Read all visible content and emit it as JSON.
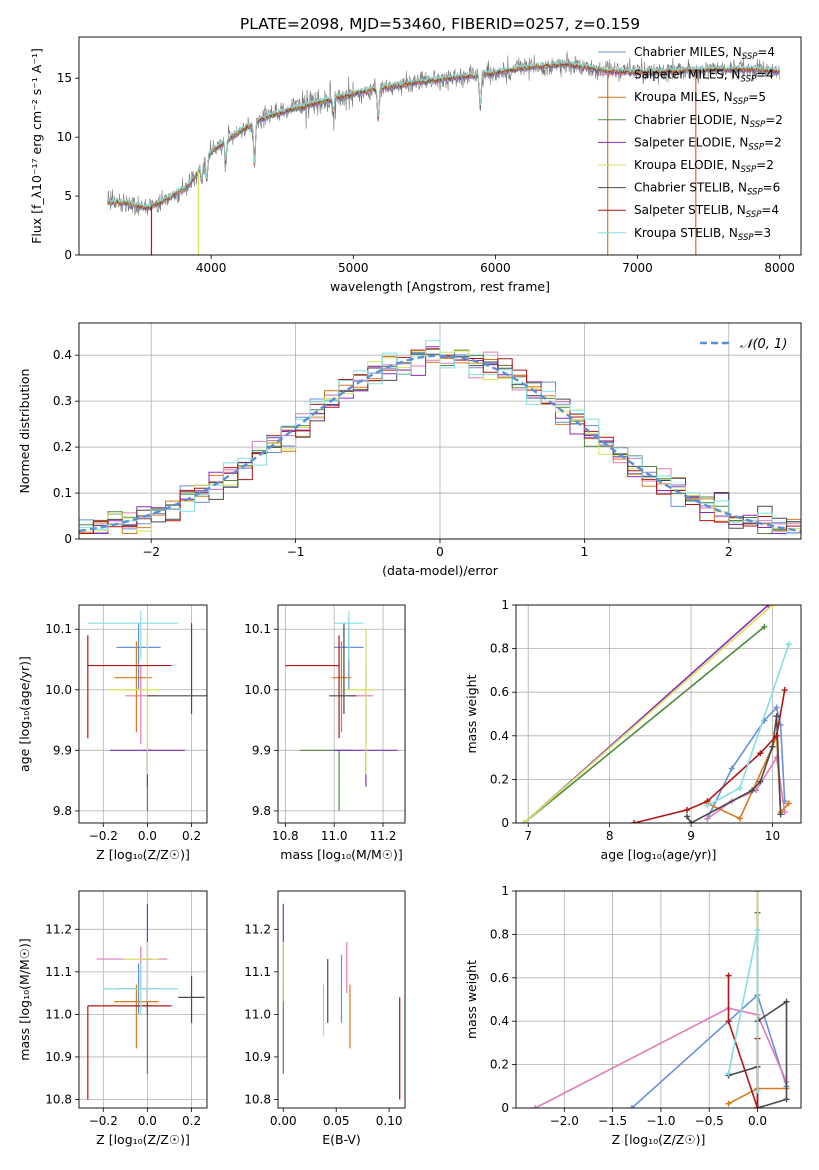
{
  "figure_title": "PLATE=2098, MJD=53460, FIBERID=0257, z=0.159",
  "colors": {
    "Chabrier MILES": "#6a8fd8",
    "Salpeter MILES": "#e07aba",
    "Kroupa MILES": "#d97a1f",
    "Chabrier ELODIE": "#4f8a3f",
    "Salpeter ELODIE": "#8e2ab8",
    "Kroupa ELODIE": "#d4e35a",
    "Chabrier STELIB": "#4a4a4a",
    "Salpeter STELIB": "#b01515",
    "Kroupa STELIB": "#84dfe2",
    "normal": "#5b8fd6"
  },
  "chart_data": [
    {
      "id": "spectrum",
      "type": "line",
      "xlabel": "wavelength [Angstrom, rest frame]",
      "ylabel": "Flux [f_λ10⁻¹⁷ erg cm⁻² s⁻¹ A⁻¹]",
      "xlim": [
        3070,
        8150
      ],
      "ylim": [
        0,
        18.5
      ],
      "xticks": [
        4000,
        5000,
        6000,
        7000,
        8000
      ],
      "yticks": [
        0,
        5,
        10,
        15
      ],
      "grid": false,
      "legend_position": "right",
      "legend": [
        {
          "model": "Chabrier MILES",
          "nssp": "4"
        },
        {
          "model": "Salpeter MILES",
          "nssp": "4"
        },
        {
          "model": "Kroupa MILES",
          "nssp": "5"
        },
        {
          "model": "Chabrier ELODIE",
          "nssp": "2"
        },
        {
          "model": "Salpeter ELODIE",
          "nssp": "2"
        },
        {
          "model": "Kroupa ELODIE",
          "nssp": "2"
        },
        {
          "model": "Chabrier STELIB",
          "nssp": "6"
        },
        {
          "model": "Salpeter STELIB",
          "nssp": "4"
        },
        {
          "model": "Kroupa STELIB",
          "nssp": "3"
        }
      ],
      "continuum": {
        "x": [
          3270,
          3400,
          3550,
          3700,
          3850,
          4000,
          4200,
          4400,
          4700,
          5000,
          5300,
          5600,
          5900,
          6200,
          6500,
          6800,
          7100,
          7400,
          7700,
          8000
        ],
        "y": [
          4.5,
          4.4,
          4.0,
          4.8,
          6.0,
          8.8,
          10.5,
          11.8,
          12.8,
          13.7,
          14.4,
          14.9,
          15.3,
          15.9,
          16.2,
          15.6,
          15.5,
          15.7,
          15.8,
          15.6
        ]
      },
      "absorption_lines": [
        {
          "x": 3934,
          "y": 6.2
        },
        {
          "x": 3969,
          "y": 6.4
        },
        {
          "x": 4102,
          "y": 7.8
        },
        {
          "x": 4305,
          "y": 7.6
        },
        {
          "x": 4861,
          "y": 12.0
        },
        {
          "x": 5175,
          "y": 11.5
        },
        {
          "x": 5893,
          "y": 12.5
        }
      ],
      "spikes": [
        {
          "x": 3580,
          "y": 0
        },
        {
          "x": 3910,
          "y": 0
        },
        {
          "x": 6790,
          "y": 0
        },
        {
          "x": 7410,
          "y": 0
        }
      ]
    },
    {
      "id": "residuals",
      "type": "histogram",
      "xlabel": "(data-model)/error",
      "ylabel": "Normed distribution",
      "xlim": [
        -2.5,
        2.5
      ],
      "ylim": [
        0,
        0.47
      ],
      "xticks": [
        -2,
        -1,
        0,
        1,
        2
      ],
      "yticks": [
        0.0,
        0.1,
        0.2,
        0.3,
        0.4
      ],
      "grid": true,
      "legend": "𝒩(0, 1)",
      "legend_position": "top-right",
      "bin_width": 0.1,
      "bin_range": [
        -2.5,
        2.5
      ]
    },
    {
      "id": "age_vs_z",
      "type": "errorbar",
      "xlabel": "Z [log₁₀(Z/Z☉)]",
      "ylabel": "age  [log₁₀(age/yr)]",
      "xlim": [
        -0.31,
        0.27
      ],
      "ylim": [
        9.78,
        10.14
      ],
      "xticks": [
        -0.2,
        0.0,
        0.2
      ],
      "xticklabels": [
        "−0.2",
        "0.0",
        "0.2"
      ],
      "yticks": [
        9.8,
        9.9,
        10.0,
        10.1
      ],
      "yticklabels": [
        "9.8",
        "9.9",
        "10.0",
        "10.1"
      ],
      "grid": true,
      "points": [
        {
          "model": "Chabrier MILES",
          "x": -0.04,
          "xerr": [
            0.1,
            0.1
          ],
          "y": 10.07,
          "yerr": [
            0.07,
            0.04
          ]
        },
        {
          "model": "Salpeter MILES",
          "x": -0.03,
          "xerr": [
            0.07,
            0.07
          ],
          "y": 9.99,
          "yerr": [
            0.08,
            0.05
          ]
        },
        {
          "model": "Kroupa MILES",
          "x": -0.05,
          "xerr": [
            0.1,
            0.07
          ],
          "y": 10.02,
          "yerr": [
            0.09,
            0.06
          ]
        },
        {
          "model": "Chabrier ELODIE",
          "x": 0.0,
          "xerr": [
            0.02,
            0.02
          ],
          "y": 9.9,
          "yerr": [
            0.1,
            0.0
          ]
        },
        {
          "model": "Salpeter ELODIE",
          "x": 0.0,
          "xerr": [
            0.17,
            0.17
          ],
          "y": 9.9,
          "yerr": [
            0.06,
            0.0
          ]
        },
        {
          "model": "Kroupa ELODIE",
          "x": 0.0,
          "xerr": [
            0.18,
            0.06
          ],
          "y": 10.0,
          "yerr": [
            0.14,
            0.1
          ]
        },
        {
          "model": "Chabrier STELIB",
          "x": 0.2,
          "xerr": [
            0.2,
            0.2
          ],
          "y": 9.99,
          "yerr": [
            0.03,
            0.12
          ]
        },
        {
          "model": "Salpeter STELIB",
          "x": -0.27,
          "xerr": [
            0.0,
            0.38
          ],
          "y": 10.04,
          "yerr": [
            0.12,
            0.05
          ]
        },
        {
          "model": "Kroupa STELIB",
          "x": -0.03,
          "xerr": [
            0.24,
            0.17
          ],
          "y": 10.11,
          "yerr": [
            0.06,
            0.02
          ]
        }
      ]
    },
    {
      "id": "age_vs_mass",
      "type": "errorbar",
      "xlabel": "mass [log₁₀(M/M☉)]",
      "ylabel": "",
      "xlim": [
        10.77,
        11.29
      ],
      "ylim": [
        9.78,
        10.14
      ],
      "xticks": [
        10.8,
        11.0,
        11.2
      ],
      "xticklabels": [
        "10.8",
        "11.0",
        "11.2"
      ],
      "yticks": [
        9.8,
        9.9,
        10.0,
        10.1
      ],
      "yticklabels": [
        "9.8",
        "9.9",
        "10.0",
        "10.1"
      ],
      "grid": true,
      "points": [
        {
          "model": "Chabrier MILES",
          "x": 11.06,
          "xerr": [
            0.06,
            0.06
          ],
          "y": 10.07,
          "yerr": [
            0.07,
            0.04
          ]
        },
        {
          "model": "Salpeter MILES",
          "x": 11.13,
          "xerr": [
            0.07,
            0.03
          ],
          "y": 9.99,
          "yerr": [
            0.08,
            0.05
          ]
        },
        {
          "model": "Kroupa MILES",
          "x": 11.03,
          "xerr": [
            0.04,
            0.04
          ],
          "y": 10.02,
          "yerr": [
            0.09,
            0.06
          ]
        },
        {
          "model": "Chabrier ELODIE",
          "x": 11.02,
          "xerr": [
            0.16,
            0.05
          ],
          "y": 9.9,
          "yerr": [
            0.1,
            0.0
          ]
        },
        {
          "model": "Salpeter ELODIE",
          "x": 11.13,
          "xerr": [
            0.13,
            0.13
          ],
          "y": 9.9,
          "yerr": [
            0.06,
            0.0
          ]
        },
        {
          "model": "Kroupa ELODIE",
          "x": 11.13,
          "xerr": [
            0.1,
            0.04
          ],
          "y": 10.0,
          "yerr": [
            0.14,
            0.1
          ]
        },
        {
          "model": "Chabrier STELIB",
          "x": 11.04,
          "xerr": [
            0.06,
            0.05
          ],
          "y": 9.99,
          "yerr": [
            0.03,
            0.12
          ]
        },
        {
          "model": "Salpeter STELIB",
          "x": 11.02,
          "xerr": [
            0.22,
            0.0
          ],
          "y": 10.04,
          "yerr": [
            0.12,
            0.05
          ]
        },
        {
          "model": "Kroupa STELIB",
          "x": 11.06,
          "xerr": [
            0.06,
            0.06
          ],
          "y": 10.11,
          "yerr": [
            0.06,
            0.02
          ]
        }
      ]
    },
    {
      "id": "weight_vs_age",
      "type": "line",
      "xlabel": "age  [log₁₀(age/yr)]",
      "ylabel": "mass weight",
      "xlim": [
        6.85,
        10.35
      ],
      "ylim": [
        0,
        1
      ],
      "xticks": [
        7,
        8,
        9,
        10
      ],
      "yticks": [
        0.0,
        0.2,
        0.4,
        0.6,
        0.8,
        1.0
      ],
      "grid": true,
      "series": [
        {
          "model": "Chabrier MILES",
          "x": [
            9.2,
            9.5,
            9.9,
            10.05,
            10.1,
            10.15
          ],
          "y": [
            0.02,
            0.25,
            0.47,
            0.53,
            0.45,
            0.1
          ]
        },
        {
          "model": "Salpeter MILES",
          "x": [
            9.2,
            9.5,
            9.8,
            10.05,
            10.15
          ],
          "y": [
            0.02,
            0.1,
            0.15,
            0.3,
            0.05
          ]
        },
        {
          "model": "Kroupa MILES",
          "x": [
            9.2,
            9.6,
            10.0,
            10.05,
            10.1,
            10.2
          ],
          "y": [
            0.09,
            0.02,
            0.35,
            0.4,
            0.05,
            0.09
          ]
        },
        {
          "model": "Chabrier ELODIE",
          "x": [
            6.95,
            9.9
          ],
          "y": [
            0.0,
            0.9
          ]
        },
        {
          "model": "Salpeter ELODIE",
          "x": [
            6.95,
            9.95
          ],
          "y": [
            0.0,
            1.0
          ]
        },
        {
          "model": "Kroupa ELODIE",
          "x": [
            6.95,
            10.0
          ],
          "y": [
            0.0,
            1.0
          ]
        },
        {
          "model": "Chabrier STELIB",
          "x": [
            8.95,
            9.0,
            9.75,
            9.85,
            10.0,
            10.05,
            10.1
          ],
          "y": [
            0.03,
            0.0,
            0.15,
            0.19,
            0.35,
            0.49,
            0.04
          ]
        },
        {
          "model": "Salpeter STELIB",
          "x": [
            8.3,
            8.95,
            9.2,
            9.85,
            10.05,
            10.15
          ],
          "y": [
            0.0,
            0.06,
            0.1,
            0.32,
            0.4,
            0.61
          ]
        },
        {
          "model": "Kroupa STELIB",
          "x": [
            9.2,
            9.6,
            10.2
          ],
          "y": [
            0.08,
            0.16,
            0.82
          ]
        }
      ]
    },
    {
      "id": "mass_vs_z",
      "type": "errorbar",
      "xlabel": "Z [log₁₀(Z/Z☉)]",
      "ylabel": "mass [log₁₀(M/M☉)]",
      "xlim": [
        -0.31,
        0.27
      ],
      "ylim": [
        10.78,
        11.29
      ],
      "xticks": [
        -0.2,
        0.0,
        0.2
      ],
      "xticklabels": [
        "−0.2",
        "0.0",
        "0.2"
      ],
      "yticks": [
        10.8,
        10.9,
        11.0,
        11.1,
        11.2
      ],
      "yticklabels": [
        "10.8",
        "10.9",
        "11.0",
        "11.1",
        "11.2"
      ],
      "grid": true,
      "points": [
        {
          "model": "Chabrier MILES",
          "x": -0.04,
          "xerr": [
            0.1,
            0.1
          ],
          "y": 11.06,
          "yerr": [
            0.06,
            0.06
          ]
        },
        {
          "model": "Salpeter MILES",
          "x": -0.03,
          "xerr": [
            0.2,
            0.12
          ],
          "y": 11.13,
          "yerr": [
            0.07,
            0.03
          ]
        },
        {
          "model": "Kroupa MILES",
          "x": -0.05,
          "xerr": [
            0.1,
            0.1
          ],
          "y": 11.03,
          "yerr": [
            0.11,
            0.04
          ]
        },
        {
          "model": "Chabrier ELODIE",
          "x": 0.0,
          "xerr": [
            0.02,
            0.02
          ],
          "y": 11.02,
          "yerr": [
            0.16,
            0.05
          ]
        },
        {
          "model": "Salpeter ELODIE",
          "x": 0.0,
          "xerr": [
            0.02,
            0.02
          ],
          "y": 11.13,
          "yerr": [
            0.13,
            0.13
          ]
        },
        {
          "model": "Kroupa ELODIE",
          "x": 0.0,
          "xerr": [
            0.11,
            0.05
          ],
          "y": 11.13,
          "yerr": [
            0.1,
            0.04
          ]
        },
        {
          "model": "Chabrier STELIB",
          "x": 0.2,
          "xerr": [
            0.06,
            0.06
          ],
          "y": 11.04,
          "yerr": [
            0.06,
            0.05
          ]
        },
        {
          "model": "Salpeter STELIB",
          "x": -0.27,
          "xerr": [
            0.0,
            0.38
          ],
          "y": 11.02,
          "yerr": [
            0.22,
            0.0
          ]
        },
        {
          "model": "Kroupa STELIB",
          "x": -0.03,
          "xerr": [
            0.17,
            0.17
          ],
          "y": 11.06,
          "yerr": [
            0.06,
            0.06
          ]
        }
      ]
    },
    {
      "id": "mass_vs_ebv",
      "type": "errorbar",
      "xlabel": "E(B-V)",
      "ylabel": "",
      "xlim": [
        -0.005,
        0.115
      ],
      "ylim": [
        10.78,
        11.29
      ],
      "xticks": [
        0.0,
        0.05,
        0.1
      ],
      "xticklabels": [
        "0.00",
        "0.05",
        "0.10"
      ],
      "yticks": [
        10.8,
        10.9,
        11.0,
        11.1,
        11.2
      ],
      "yticklabels": [
        "10.8",
        "10.9",
        "11.0",
        "11.1",
        "11.2"
      ],
      "grid": false,
      "points": [
        {
          "model": "Chabrier MILES",
          "x": 0.055,
          "y": 11.06,
          "yerr": [
            0.08,
            0.08
          ]
        },
        {
          "model": "Salpeter MILES",
          "x": 0.06,
          "y": 11.13,
          "yerr": [
            0.08,
            0.04
          ]
        },
        {
          "model": "Kroupa MILES",
          "x": 0.063,
          "y": 11.03,
          "yerr": [
            0.11,
            0.04
          ]
        },
        {
          "model": "Chabrier ELODIE",
          "x": 0.0,
          "y": 11.02,
          "yerr": [
            0.16,
            0.05
          ]
        },
        {
          "model": "Salpeter ELODIE",
          "x": 0.0,
          "y": 11.13,
          "yerr": [
            0.1,
            0.13
          ]
        },
        {
          "model": "Kroupa ELODIE",
          "x": 0.0,
          "y": 11.13,
          "yerr": [
            0.1,
            0.04
          ]
        },
        {
          "model": "Chabrier STELIB",
          "x": 0.042,
          "y": 11.04,
          "yerr": [
            0.06,
            0.09
          ]
        },
        {
          "model": "Salpeter STELIB",
          "x": 0.11,
          "y": 11.02,
          "yerr": [
            0.22,
            0.02
          ]
        },
        {
          "model": "Kroupa STELIB",
          "x": 0.038,
          "y": 11.06,
          "yerr": [
            0.11,
            0.01
          ]
        }
      ]
    },
    {
      "id": "weight_vs_z",
      "type": "line",
      "xlabel": "Z [log₁₀(Z/Z☉)]",
      "ylabel": "mass weight",
      "xlim": [
        -2.5,
        0.45
      ],
      "ylim": [
        0,
        1
      ],
      "xticks": [
        -2.0,
        -1.5,
        -1.0,
        -0.5,
        0.0
      ],
      "xticklabels": [
        "−2.0",
        "−1.5",
        "−1.0",
        "−0.5",
        "0.0"
      ],
      "yticks": [
        0.0,
        0.2,
        0.4,
        0.6,
        0.8,
        1.0
      ],
      "grid": true,
      "series": [
        {
          "model": "Chabrier MILES",
          "x": [
            -1.3,
            -0.3,
            0.0,
            0.3
          ],
          "y": [
            0.0,
            0.4,
            0.52,
            0.1
          ]
        },
        {
          "model": "Salpeter MILES",
          "x": [
            -2.3,
            -0.3,
            0.0,
            0.3
          ],
          "y": [
            0.0,
            0.46,
            0.43,
            0.12
          ]
        },
        {
          "model": "Kroupa MILES",
          "x": [
            -0.3,
            0.0,
            0.3
          ],
          "y": [
            0.02,
            0.09,
            0.09
          ]
        },
        {
          "model": "Chabrier ELODIE",
          "x": [
            0.0,
            0.0
          ],
          "y": [
            0.0,
            0.9
          ]
        },
        {
          "model": "Salpeter ELODIE",
          "x": [
            0.0,
            0.0
          ],
          "y": [
            0.0,
            1.0
          ]
        },
        {
          "model": "Kroupa ELODIE",
          "x": [
            0.0,
            0.0
          ],
          "y": [
            0.0,
            1.0
          ]
        },
        {
          "model": "Chabrier STELIB",
          "x": [
            -0.3,
            0.0,
            0.0,
            0.3,
            0.3,
            0.0
          ],
          "y": [
            0.15,
            0.19,
            0.0,
            0.04,
            0.49,
            0.4
          ]
        },
        {
          "model": "Salpeter STELIB",
          "x": [
            -0.3,
            -0.3,
            0.0,
            0.0
          ],
          "y": [
            0.61,
            0.4,
            0.0,
            0.32
          ]
        },
        {
          "model": "Kroupa STELIB",
          "x": [
            -0.3,
            0.0,
            0.0
          ],
          "y": [
            0.16,
            0.82,
            0.08
          ]
        }
      ]
    }
  ]
}
